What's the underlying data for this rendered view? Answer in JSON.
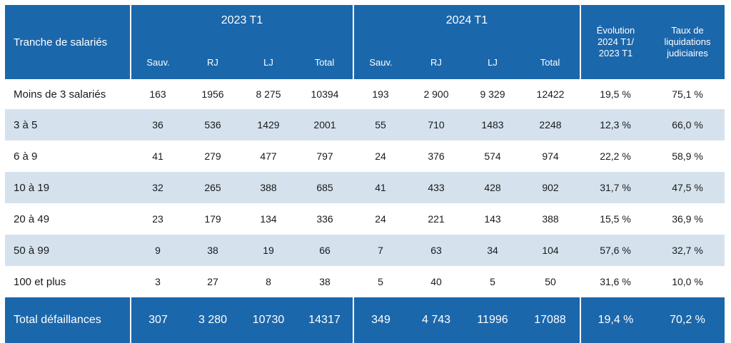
{
  "chart_data": {
    "type": "table",
    "header": {
      "row_label": "Tranche de salariés",
      "group_2023": "2023 T1",
      "group_2024": "2024 T1",
      "evolution": [
        "Évolution",
        "2024 T1/",
        "2023 T1"
      ],
      "taux": [
        "Taux de",
        "liquidations",
        "judiciaires"
      ],
      "sub_2023": [
        "Sauv.",
        "RJ",
        "LJ",
        "Total"
      ],
      "sub_2024": [
        "Sauv.",
        "RJ",
        "LJ",
        "Total"
      ]
    },
    "rows": [
      {
        "label": "Moins de 3 salariés",
        "cells": [
          "163",
          "1956",
          "8 275",
          "10394",
          "193",
          "2 900",
          "9 329",
          "12422",
          "19,5 %",
          "75,1 %"
        ]
      },
      {
        "label": "3 à 5",
        "cells": [
          "36",
          "536",
          "1429",
          "2001",
          "55",
          "710",
          "1483",
          "2248",
          "12,3 %",
          "66,0 %"
        ]
      },
      {
        "label": "6 à 9",
        "cells": [
          "41",
          "279",
          "477",
          "797",
          "24",
          "376",
          "574",
          "974",
          "22,2 %",
          "58,9 %"
        ]
      },
      {
        "label": "10 à 19",
        "cells": [
          "32",
          "265",
          "388",
          "685",
          "41",
          "433",
          "428",
          "902",
          "31,7 %",
          "47,5 %"
        ]
      },
      {
        "label": "20 à 49",
        "cells": [
          "23",
          "179",
          "134",
          "336",
          "24",
          "221",
          "143",
          "388",
          "15,5 %",
          "36,9 %"
        ]
      },
      {
        "label": "50 à 99",
        "cells": [
          "9",
          "38",
          "19",
          "66",
          "7",
          "63",
          "34",
          "104",
          "57,6 %",
          "32,7 %"
        ]
      },
      {
        "label": "100 et plus",
        "cells": [
          "3",
          "27",
          "8",
          "38",
          "5",
          "40",
          "5",
          "50",
          "31,6 %",
          "10,0 %"
        ]
      }
    ],
    "total": {
      "label": "Total défaillances",
      "cells": [
        "307",
        "3 280",
        "10730",
        "14317",
        "349",
        "4 743",
        "11996",
        "17088",
        "19,4 %",
        "70,2 %"
      ]
    }
  },
  "colors": {
    "header_bg": "#1b67ab",
    "stripe_bg": "#d5e2ee"
  }
}
